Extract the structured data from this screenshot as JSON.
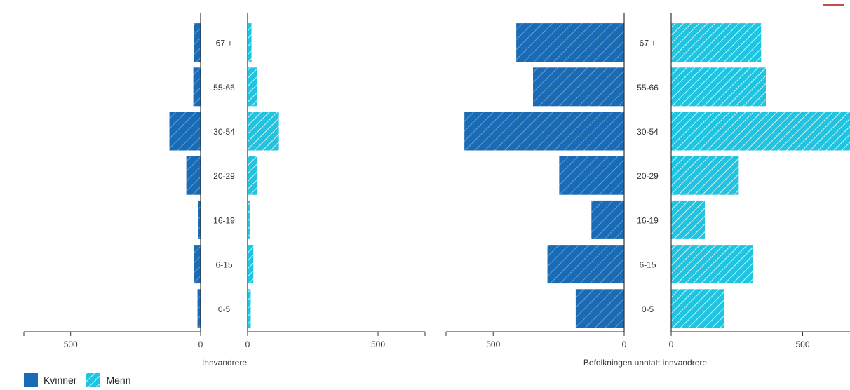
{
  "colors": {
    "kvinner": "#1a6bb5",
    "menn": "#21c4e0",
    "axis": "#333333",
    "hatch": "#ffffff"
  },
  "legend": {
    "kvinner_label": "Kvinner",
    "menn_label": "Menn"
  },
  "chart_data": [
    {
      "type": "bar",
      "orientation": "horizontal-pyramid",
      "xlabel": "Innvandrere",
      "categories": [
        "67 +",
        "55-66",
        "30-54",
        "20-29",
        "16-19",
        "6-15",
        "0-5"
      ],
      "xlim_left": [
        0,
        680
      ],
      "xlim_right": [
        0,
        680
      ],
      "left_ticks": [
        500,
        0
      ],
      "right_ticks": [
        0,
        500
      ],
      "series": [
        {
          "name": "Kvinner",
          "side": "left",
          "values": [
            25,
            28,
            120,
            55,
            10,
            25,
            12
          ]
        },
        {
          "name": "Menn",
          "side": "right",
          "values": [
            15,
            35,
            120,
            38,
            8,
            22,
            12
          ]
        }
      ]
    },
    {
      "type": "bar",
      "orientation": "horizontal-pyramid",
      "xlabel": "Befolkningen unntatt innvandrere",
      "categories": [
        "67 +",
        "55-66",
        "30-54",
        "20-29",
        "16-19",
        "6-15",
        "0-5"
      ],
      "xlim_left": [
        0,
        680
      ],
      "xlim_right": [
        0,
        680
      ],
      "left_ticks": [
        500,
        0
      ],
      "right_ticks": [
        0,
        500
      ],
      "series": [
        {
          "name": "Kvinner",
          "side": "left",
          "values": [
            412,
            348,
            610,
            248,
            125,
            293,
            185
          ]
        },
        {
          "name": "Menn",
          "side": "right",
          "values": [
            342,
            360,
            680,
            257,
            128,
            310,
            200
          ]
        }
      ]
    }
  ]
}
